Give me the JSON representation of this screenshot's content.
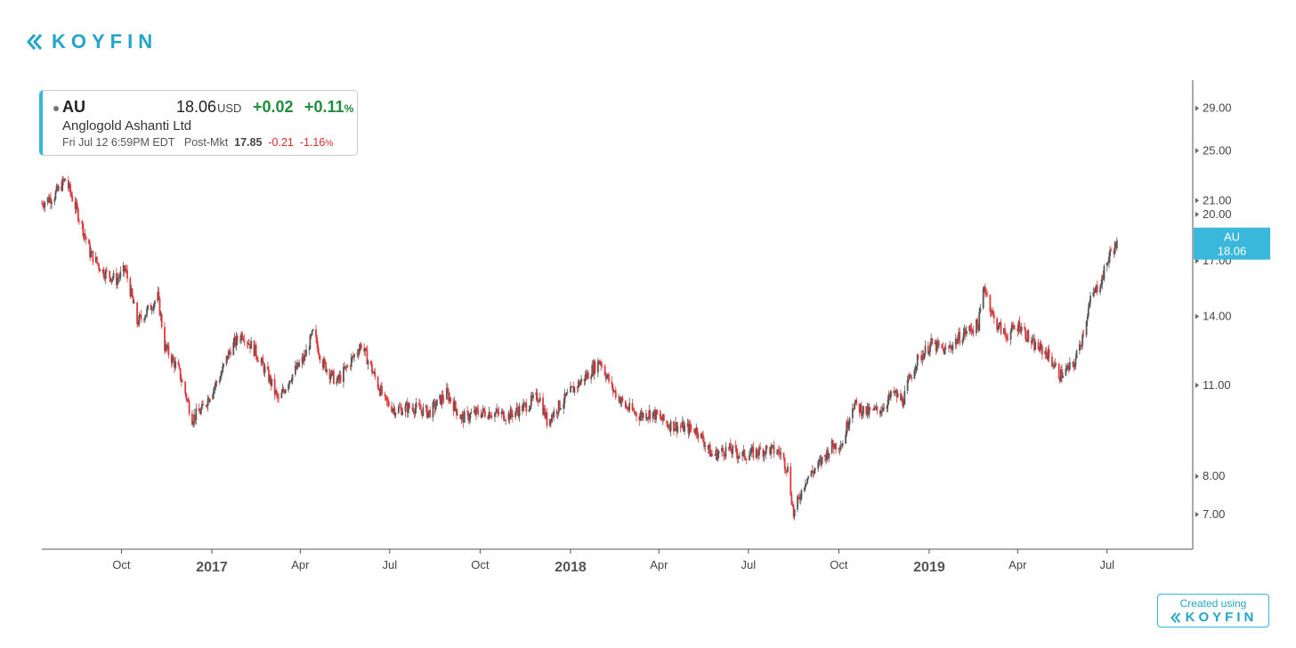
{
  "brand": {
    "name": "KOYFIN",
    "color": "#22a5c9",
    "icon": "koyfin-chevrons-icon"
  },
  "quote": {
    "ticker": "AU",
    "price": "18.06",
    "currency": "USD",
    "change": "+0.02",
    "change_pct": "+0.11",
    "pct_sign": "%",
    "name": "Anglogold Ashanti Ltd",
    "timestamp": "Fri Jul 12 6:59PM EDT",
    "session": "Post-Mkt",
    "post_price": "17.85",
    "post_change": "-0.21",
    "post_change_pct": "-1.16",
    "up_color": "#1e8e3e",
    "down_color": "#d62c2c"
  },
  "watermark": {
    "line1": "Created using",
    "line2": "KOYFIN"
  },
  "chart_data": {
    "type": "candlestick",
    "series_name": "AU",
    "last_label": {
      "ticker": "AU",
      "value": "18.06"
    },
    "y_axis": {
      "scale": "log",
      "ticks": [
        "29.00",
        "25.00",
        "21.00",
        "20.00",
        "17.00",
        "14.00",
        "11.00",
        "8.00",
        "7.00"
      ],
      "range": [
        6.2,
        32
      ]
    },
    "x_axis": {
      "labels": [
        {
          "text": "Oct",
          "date": "2016-10-01",
          "year": false
        },
        {
          "text": "2017",
          "date": "2017-01-01",
          "year": true
        },
        {
          "text": "Apr",
          "date": "2017-04-01",
          "year": false
        },
        {
          "text": "Jul",
          "date": "2017-07-01",
          "year": false
        },
        {
          "text": "Oct",
          "date": "2017-10-01",
          "year": false
        },
        {
          "text": "2018",
          "date": "2018-01-01",
          "year": true
        },
        {
          "text": "Apr",
          "date": "2018-04-01",
          "year": false
        },
        {
          "text": "Jul",
          "date": "2018-07-01",
          "year": false
        },
        {
          "text": "Oct",
          "date": "2018-10-01",
          "year": false
        },
        {
          "text": "2019",
          "date": "2019-01-01",
          "year": true
        },
        {
          "text": "Apr",
          "date": "2019-04-01",
          "year": false
        },
        {
          "text": "Jul",
          "date": "2019-07-01",
          "year": false
        }
      ],
      "range": [
        "2016-07-12",
        "2019-08-15"
      ]
    },
    "up_color": "#555555",
    "down_color": "#e0393b",
    "label_color": "#3ab8db",
    "close_points": [
      [
        "2016-07-12",
        20.8
      ],
      [
        "2016-07-25",
        21.4
      ],
      [
        "2016-08-05",
        22.6
      ],
      [
        "2016-08-18",
        20.0
      ],
      [
        "2016-08-30",
        17.5
      ],
      [
        "2016-09-12",
        16.4
      ],
      [
        "2016-09-26",
        15.9
      ],
      [
        "2016-10-05",
        16.5
      ],
      [
        "2016-10-17",
        13.7
      ],
      [
        "2016-10-28",
        14.3
      ],
      [
        "2016-11-07",
        15.0
      ],
      [
        "2016-11-14",
        12.6
      ],
      [
        "2016-11-28",
        11.6
      ],
      [
        "2016-12-12",
        9.8
      ],
      [
        "2016-12-22",
        10.1
      ],
      [
        "2017-01-10",
        11.4
      ],
      [
        "2017-01-20",
        12.5
      ],
      [
        "2017-02-01",
        13.2
      ],
      [
        "2017-02-14",
        12.4
      ],
      [
        "2017-02-28",
        11.3
      ],
      [
        "2017-03-10",
        10.4
      ],
      [
        "2017-03-20",
        11.2
      ],
      [
        "2017-04-05",
        12.1
      ],
      [
        "2017-04-14",
        13.2
      ],
      [
        "2017-04-24",
        11.9
      ],
      [
        "2017-05-08",
        11.1
      ],
      [
        "2017-05-20",
        11.8
      ],
      [
        "2017-06-02",
        12.7
      ],
      [
        "2017-06-15",
        11.4
      ],
      [
        "2017-06-26",
        10.4
      ],
      [
        "2017-07-07",
        10.1
      ],
      [
        "2017-07-24",
        10.2
      ],
      [
        "2017-08-10",
        10.0
      ],
      [
        "2017-08-28",
        10.7
      ],
      [
        "2017-09-12",
        9.8
      ],
      [
        "2017-09-28",
        10.0
      ],
      [
        "2017-10-12",
        10.0
      ],
      [
        "2017-10-30",
        9.9
      ],
      [
        "2017-11-15",
        10.2
      ],
      [
        "2017-11-30",
        10.6
      ],
      [
        "2017-12-08",
        9.7
      ],
      [
        "2017-12-22",
        10.3
      ],
      [
        "2018-01-05",
        10.9
      ],
      [
        "2018-01-18",
        11.4
      ],
      [
        "2018-01-31",
        12.0
      ],
      [
        "2018-02-12",
        10.9
      ],
      [
        "2018-02-26",
        10.2
      ],
      [
        "2018-03-12",
        9.9
      ],
      [
        "2018-03-25",
        10.0
      ],
      [
        "2018-04-10",
        9.6
      ],
      [
        "2018-04-25",
        9.5
      ],
      [
        "2018-05-10",
        9.4
      ],
      [
        "2018-05-25",
        8.6
      ],
      [
        "2018-06-10",
        8.8
      ],
      [
        "2018-06-25",
        8.6
      ],
      [
        "2018-07-08",
        8.7
      ],
      [
        "2018-07-20",
        8.8
      ],
      [
        "2018-08-02",
        8.7
      ],
      [
        "2018-08-10",
        8.2
      ],
      [
        "2018-08-16",
        7.0
      ],
      [
        "2018-08-28",
        7.9
      ],
      [
        "2018-09-10",
        8.3
      ],
      [
        "2018-09-24",
        8.9
      ],
      [
        "2018-10-05",
        9.0
      ],
      [
        "2018-10-15",
        10.3
      ],
      [
        "2018-10-30",
        10.0
      ],
      [
        "2018-11-12",
        10.1
      ],
      [
        "2018-11-26",
        10.7
      ],
      [
        "2018-12-05",
        10.4
      ],
      [
        "2018-12-18",
        11.9
      ],
      [
        "2019-01-03",
        12.7
      ],
      [
        "2019-01-18",
        12.4
      ],
      [
        "2019-02-05",
        13.2
      ],
      [
        "2019-02-20",
        13.6
      ],
      [
        "2019-02-26",
        15.6
      ],
      [
        "2019-03-08",
        13.8
      ],
      [
        "2019-03-20",
        13.1
      ],
      [
        "2019-04-03",
        13.6
      ],
      [
        "2019-04-16",
        12.7
      ],
      [
        "2019-05-01",
        12.3
      ],
      [
        "2019-05-14",
        11.4
      ],
      [
        "2019-05-28",
        11.8
      ],
      [
        "2019-06-05",
        12.9
      ],
      [
        "2019-06-14",
        14.8
      ],
      [
        "2019-06-26",
        16.0
      ],
      [
        "2019-07-05",
        17.6
      ],
      [
        "2019-07-12",
        18.06
      ]
    ]
  }
}
